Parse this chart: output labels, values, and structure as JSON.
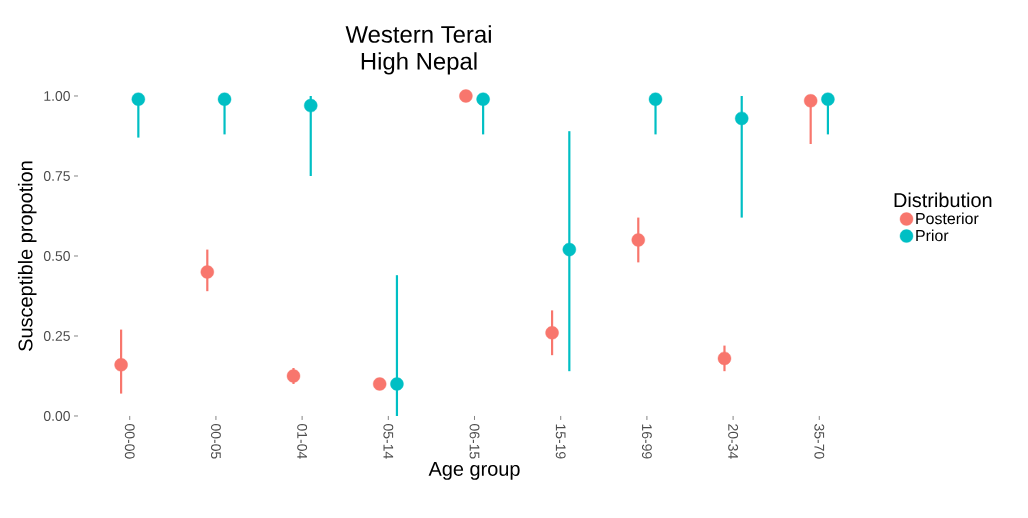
{
  "chart_data": {
    "type": "scatter",
    "title": "Western Terai",
    "subtitle": "High Nepal",
    "xlabel": "Age group",
    "ylabel": "Susceptible propotion",
    "legend_title": "Distribution",
    "categories": [
      "00-00",
      "00-05",
      "01-04",
      "05-14",
      "06-15",
      "15-19",
      "16-99",
      "20-34",
      "35-70"
    ],
    "series": [
      {
        "name": "Posterior",
        "color": "#f8766d",
        "values": [
          0.16,
          0.45,
          0.125,
          0.1,
          1.0,
          0.26,
          0.55,
          0.18,
          0.985
        ],
        "errors": [
          [
            0.07,
            0.27
          ],
          [
            0.39,
            0.52
          ],
          [
            0.1,
            0.15
          ],
          null,
          null,
          [
            0.19,
            0.33
          ],
          [
            0.48,
            0.62
          ],
          [
            0.14,
            0.22
          ],
          [
            0.85,
            1.0
          ]
        ]
      },
      {
        "name": "Prior",
        "color": "#00bfc4",
        "values": [
          0.99,
          0.99,
          0.97,
          0.1,
          0.99,
          0.52,
          0.99,
          0.93,
          0.99
        ],
        "errors": [
          [
            0.87,
            1.0
          ],
          [
            0.88,
            1.0
          ],
          [
            0.75,
            1.0
          ],
          [
            0.0,
            0.44
          ],
          [
            0.88,
            1.0
          ],
          [
            0.14,
            0.89
          ],
          [
            0.88,
            1.0
          ],
          [
            0.62,
            1.0
          ],
          [
            0.88,
            1.0
          ]
        ]
      }
    ],
    "ylim": [
      0,
      1
    ],
    "yticks": [
      {
        "value": 0,
        "label": "0.00"
      },
      {
        "value": 0.25,
        "label": "0.25"
      },
      {
        "value": 0.5,
        "label": "0.50"
      },
      {
        "value": 0.75,
        "label": "0.75"
      },
      {
        "value": 1,
        "label": "1.00"
      }
    ],
    "grid": false,
    "legend": "right",
    "marker": "circle"
  }
}
